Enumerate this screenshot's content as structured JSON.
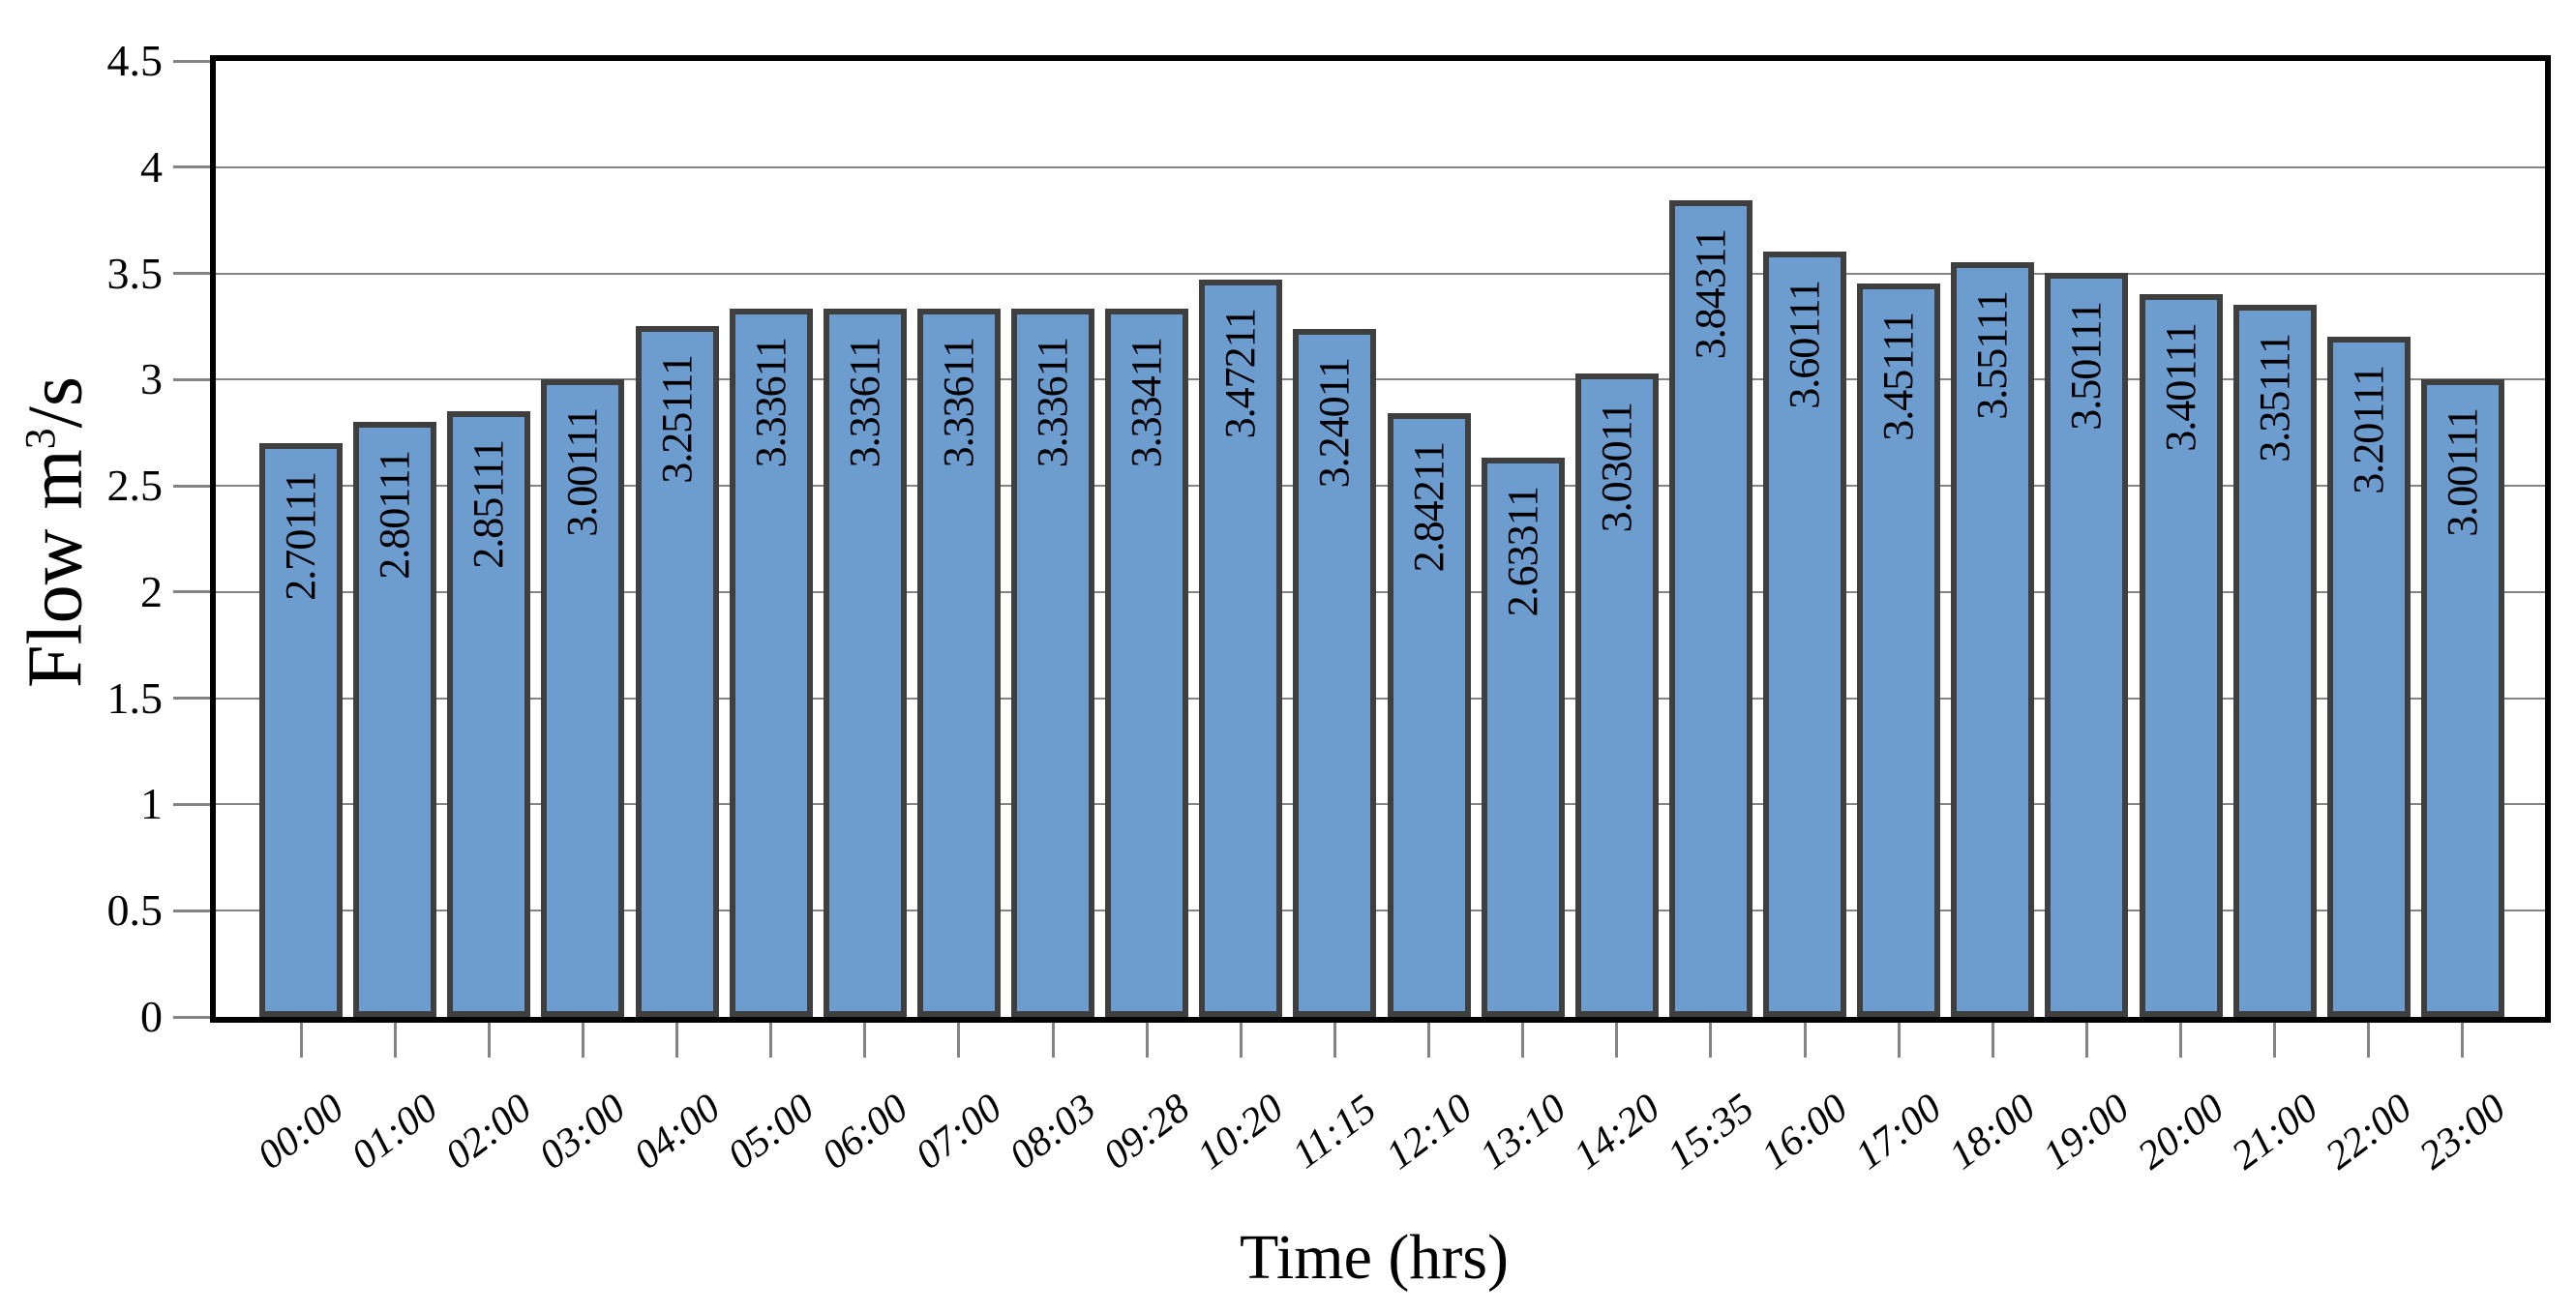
{
  "figure": {
    "axis_titles": {
      "x": "Time (hrs)",
      "y_prefix": "Flow m",
      "y_sup": "3",
      "y_suffix": "/s"
    }
  },
  "chart_data": {
    "type": "bar",
    "title": "",
    "xlabel": "Time (hrs)",
    "ylabel": "Flow m³/s",
    "categories": [
      "00:00",
      "01:00",
      "02:00",
      "03:00",
      "04:00",
      "05:00",
      "06:00",
      "07:00",
      "08:03",
      "09:28",
      "10:20",
      "11:15",
      "12:10",
      "13:10",
      "14:20",
      "15:35",
      "16:00",
      "17:00",
      "18:00",
      "19:00",
      "20:00",
      "21:00",
      "22:00",
      "23:00"
    ],
    "values": [
      2.70111,
      2.80111,
      2.85111,
      3.00111,
      3.25111,
      3.33611,
      3.33611,
      3.33611,
      3.33611,
      3.33411,
      3.47211,
      3.24011,
      2.84211,
      2.63311,
      3.03011,
      3.84311,
      3.60111,
      3.45111,
      3.55111,
      3.50111,
      3.40111,
      3.35111,
      3.20111,
      3.00111
    ],
    "bar_labels": [
      "2.70111",
      "2.80111",
      "2.85111",
      "3.00111",
      "3.25111",
      "3.33611",
      "3.33611",
      "3.33611",
      "3.33611",
      "3.33411",
      "3.47211",
      "3.24011",
      "2.84211",
      "2.63311",
      "3.03011",
      "3.84311",
      "3.60111",
      "3.45111",
      "3.55111",
      "3.50111",
      "3.40111",
      "3.35111",
      "3.20111",
      "3.00111"
    ],
    "ylim": [
      0,
      4.5
    ],
    "ytick_labels": [
      "0",
      "0.5",
      "1",
      "1.5",
      "2",
      "2.5",
      "3",
      "3.5",
      "4",
      "4.5"
    ],
    "grid": "horizontal",
    "legend": "none",
    "x_tick_label_rotation_deg": -37,
    "bar_value_label_orientation": "vertical-bottom-to-top",
    "colors": {
      "bar_fill": "#6D9CCF",
      "bar_border": "#3F3F3F",
      "gridline": "#848484",
      "tick": "#848484",
      "frame": "#000000",
      "text": "#000000"
    }
  }
}
